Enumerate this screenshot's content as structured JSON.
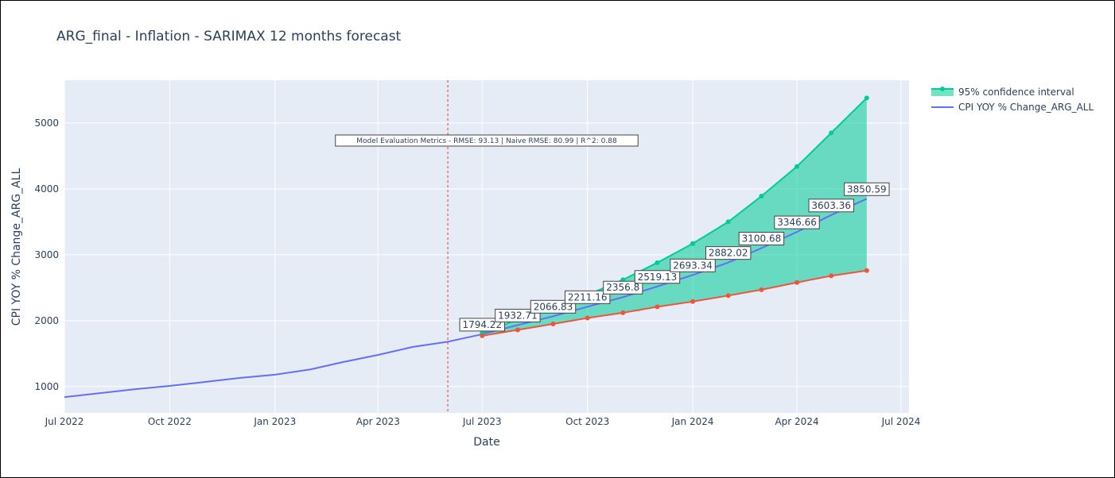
{
  "chart_data": {
    "type": "line",
    "title": "ARG_final - Inflation - SARIMAX 12 months forecast",
    "xlabel": "Date",
    "ylabel": "CPI YOY % Change_ARG_ALL",
    "x_ticks": [
      "Jul 2022",
      "Oct 2022",
      "Jan 2023",
      "Apr 2023",
      "Jul 2023",
      "Oct 2023",
      "Jan 2024",
      "Apr 2024",
      "Jul 2024"
    ],
    "y_ticks": [
      1000,
      2000,
      3000,
      4000,
      5000
    ],
    "xlim": [
      "2022-07-01",
      "2024-07-01"
    ],
    "ylim": [
      600,
      5650
    ],
    "grid": true,
    "legend_position": "top-right",
    "forecast_start_marker": "2023-06-01",
    "annotation": "Model Evaluation Metrics - RMSE: 93.13 | Naive RMSE: 80.99 | R^2: 0.88",
    "colors": {
      "actual": "#636efa",
      "upper": "#00cc96",
      "lower": "#ef553b",
      "fill": "rgba(0,204,150,0.55)",
      "marker_line": "#ef553b",
      "background": "#e5ecf6"
    },
    "legend": [
      {
        "name": "95% confidence interval",
        "kind": "band"
      },
      {
        "name": "CPI YOY % Change_ARG_ALL",
        "kind": "line"
      }
    ],
    "series": [
      {
        "name": "CPI YOY % Change_ARG_ALL",
        "x": [
          "2022-07-01",
          "2022-08-01",
          "2022-09-01",
          "2022-10-01",
          "2022-11-01",
          "2022-12-01",
          "2023-01-01",
          "2023-02-01",
          "2023-03-01",
          "2023-04-01",
          "2023-05-01",
          "2023-06-01",
          "2023-07-01",
          "2023-08-01",
          "2023-09-01",
          "2023-10-01",
          "2023-11-01",
          "2023-12-01",
          "2024-01-01",
          "2024-02-01",
          "2024-03-01",
          "2024-04-01",
          "2024-05-01",
          "2024-06-01"
        ],
        "y": [
          840,
          900,
          960,
          1010,
          1070,
          1130,
          1180,
          1260,
          1370,
          1480,
          1600,
          1680,
          1794.22,
          1932.71,
          2066.83,
          2211.16,
          2356.8,
          2519.13,
          2693.34,
          2882.02,
          3100.68,
          3346.66,
          3603.36,
          3850.59
        ]
      },
      {
        "name": "upper",
        "x": [
          "2023-07-01",
          "2023-08-01",
          "2023-09-01",
          "2023-10-01",
          "2023-11-01",
          "2023-12-01",
          "2024-01-01",
          "2024-02-01",
          "2024-03-01",
          "2024-04-01",
          "2024-05-01",
          "2024-06-01"
        ],
        "y": [
          1810,
          2020,
          2180,
          2390,
          2620,
          2880,
          3170,
          3500,
          3890,
          4340,
          4850,
          5380
        ]
      },
      {
        "name": "lower",
        "x": [
          "2023-07-01",
          "2023-08-01",
          "2023-09-01",
          "2023-10-01",
          "2023-11-01",
          "2023-12-01",
          "2024-01-01",
          "2024-02-01",
          "2024-03-01",
          "2024-04-01",
          "2024-05-01",
          "2024-06-01"
        ],
        "y": [
          1770,
          1860,
          1950,
          2040,
          2120,
          2210,
          2290,
          2380,
          2470,
          2580,
          2680,
          2760
        ]
      }
    ],
    "data_labels": [
      "1794.22",
      "1932.71",
      "2066.83",
      "2211.16",
      "2356.8",
      "2519.13",
      "2693.34",
      "2882.02",
      "3100.68",
      "3346.66",
      "3603.36",
      "3850.59"
    ]
  }
}
